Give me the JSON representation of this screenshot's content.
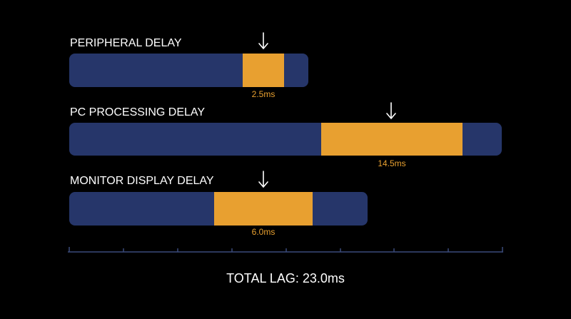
{
  "rows": [
    {
      "label": "PERIPHERAL DELAY",
      "value": "2.5ms"
    },
    {
      "label": "PC PROCESSING DELAY",
      "value": "14.5ms"
    },
    {
      "label": "MONITOR DISPLAY DELAY",
      "value": "6.0ms"
    }
  ],
  "total": "TOTAL LAG: 23.0ms"
}
